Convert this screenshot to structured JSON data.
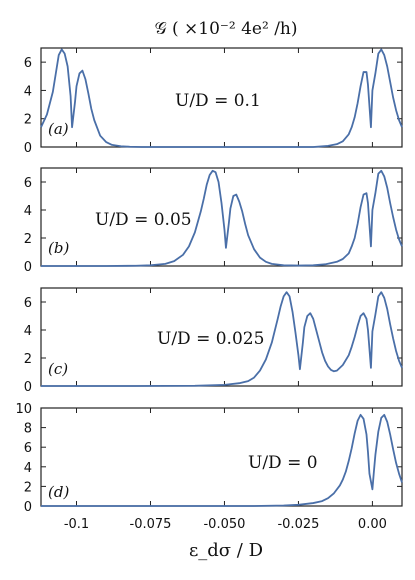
{
  "chart_data": {
    "type": "line",
    "title": "𝒢 ( ×10⁻² 4e² /h)",
    "xlabel": "ε_dσ / D",
    "xlim": [
      -0.112,
      0.01
    ],
    "x_ticks": [
      {
        "value": -0.1,
        "label": "-0.1"
      },
      {
        "value": -0.075,
        "label": "-0.075"
      },
      {
        "value": -0.05,
        "label": "-0.050"
      },
      {
        "value": -0.025,
        "label": "-0.025"
      },
      {
        "value": 0.0,
        "label": "0.00"
      }
    ],
    "panels": [
      {
        "panel_label": "(a)",
        "annotation": "U/D = 0.1",
        "ylim": [
          0,
          7
        ],
        "y_ticks": [
          0,
          2,
          4,
          6
        ],
        "x": [
          -0.112,
          -0.11,
          -0.108,
          -0.107,
          -0.106,
          -0.105,
          -0.104,
          -0.103,
          -0.102,
          -0.1015,
          -0.1005,
          -0.1,
          -0.099,
          -0.098,
          -0.097,
          -0.096,
          -0.095,
          -0.094,
          -0.092,
          -0.09,
          -0.088,
          -0.085,
          -0.082,
          -0.078,
          -0.07,
          -0.05,
          -0.03,
          -0.02,
          -0.015,
          -0.012,
          -0.01,
          -0.008,
          -0.007,
          -0.006,
          -0.005,
          -0.004,
          -0.003,
          -0.002,
          -0.0015,
          -0.0005,
          0.0,
          0.001,
          0.002,
          0.003,
          0.004,
          0.005,
          0.006,
          0.007,
          0.008,
          0.009,
          0.01
        ],
        "y": [
          1.4,
          2.3,
          3.9,
          5.2,
          6.5,
          6.9,
          6.6,
          5.7,
          3.6,
          1.4,
          3.2,
          4.3,
          5.2,
          5.4,
          4.8,
          3.8,
          2.7,
          1.9,
          0.8,
          0.35,
          0.15,
          0.05,
          0.02,
          0.0,
          0.0,
          0.0,
          0.0,
          0.0,
          0.08,
          0.2,
          0.4,
          0.9,
          1.4,
          2.1,
          3.1,
          4.3,
          5.3,
          5.3,
          4.4,
          1.4,
          4.0,
          5.2,
          6.6,
          6.9,
          6.5,
          5.7,
          4.6,
          3.5,
          2.6,
          1.9,
          1.4
        ]
      },
      {
        "panel_label": "(b)",
        "annotation": "U/D = 0.05",
        "ylim": [
          0,
          7
        ],
        "y_ticks": [
          0,
          2,
          4,
          6
        ],
        "x": [
          -0.112,
          -0.1,
          -0.09,
          -0.08,
          -0.075,
          -0.07,
          -0.067,
          -0.064,
          -0.062,
          -0.06,
          -0.058,
          -0.057,
          -0.056,
          -0.055,
          -0.054,
          -0.053,
          -0.052,
          -0.051,
          -0.05,
          -0.0495,
          -0.0485,
          -0.048,
          -0.047,
          -0.046,
          -0.045,
          -0.044,
          -0.043,
          -0.042,
          -0.04,
          -0.038,
          -0.036,
          -0.034,
          -0.03,
          -0.025,
          -0.02,
          -0.016,
          -0.012,
          -0.01,
          -0.008,
          -0.007,
          -0.006,
          -0.005,
          -0.004,
          -0.003,
          -0.002,
          -0.0015,
          -0.0005,
          0.0,
          0.001,
          0.002,
          0.003,
          0.004,
          0.005,
          0.006,
          0.007,
          0.008,
          0.009,
          0.01
        ],
        "y": [
          0.0,
          0.0,
          0.0,
          0.02,
          0.05,
          0.15,
          0.35,
          0.8,
          1.4,
          2.4,
          3.9,
          4.8,
          5.8,
          6.5,
          6.8,
          6.7,
          6.0,
          4.5,
          2.6,
          1.3,
          3.1,
          4.1,
          5.0,
          5.1,
          4.6,
          3.9,
          3.0,
          2.2,
          1.2,
          0.6,
          0.3,
          0.15,
          0.05,
          0.03,
          0.05,
          0.12,
          0.3,
          0.5,
          0.9,
          1.4,
          2.0,
          3.0,
          4.2,
          5.1,
          5.2,
          4.5,
          1.4,
          4.0,
          5.2,
          6.6,
          6.8,
          6.4,
          5.6,
          4.5,
          3.5,
          2.6,
          1.9,
          1.4
        ]
      },
      {
        "panel_label": "(c)",
        "annotation": "U/D = 0.025",
        "ylim": [
          0,
          7
        ],
        "y_ticks": [
          0,
          2,
          4,
          6
        ],
        "x": [
          -0.112,
          -0.08,
          -0.06,
          -0.05,
          -0.045,
          -0.042,
          -0.04,
          -0.038,
          -0.036,
          -0.034,
          -0.032,
          -0.031,
          -0.03,
          -0.029,
          -0.028,
          -0.027,
          -0.026,
          -0.025,
          -0.0245,
          -0.0235,
          -0.023,
          -0.022,
          -0.021,
          -0.02,
          -0.019,
          -0.018,
          -0.017,
          -0.016,
          -0.015,
          -0.014,
          -0.013,
          -0.012,
          -0.01,
          -0.008,
          -0.007,
          -0.006,
          -0.005,
          -0.004,
          -0.003,
          -0.002,
          -0.0015,
          -0.0005,
          0.0,
          0.001,
          0.002,
          0.003,
          0.004,
          0.005,
          0.006,
          0.007,
          0.008,
          0.009,
          0.01
        ],
        "y": [
          0.0,
          0.0,
          0.02,
          0.08,
          0.2,
          0.35,
          0.6,
          1.1,
          1.9,
          3.1,
          4.8,
          5.7,
          6.4,
          6.7,
          6.4,
          5.3,
          3.8,
          2.2,
          1.2,
          3.1,
          4.2,
          5.0,
          5.2,
          4.8,
          4.0,
          3.2,
          2.4,
          1.8,
          1.4,
          1.15,
          1.05,
          1.1,
          1.5,
          2.2,
          2.8,
          3.5,
          4.3,
          5.0,
          5.2,
          4.8,
          4.0,
          1.3,
          3.9,
          5.1,
          6.4,
          6.7,
          6.3,
          5.5,
          4.4,
          3.4,
          2.5,
          1.8,
          1.3
        ]
      },
      {
        "panel_label": "(d)",
        "annotation": "U/D = 0",
        "ylim": [
          0,
          10
        ],
        "y_ticks": [
          0,
          2,
          4,
          6,
          8,
          10
        ],
        "x": [
          -0.112,
          -0.06,
          -0.04,
          -0.03,
          -0.025,
          -0.02,
          -0.017,
          -0.015,
          -0.013,
          -0.011,
          -0.01,
          -0.009,
          -0.008,
          -0.007,
          -0.006,
          -0.005,
          -0.004,
          -0.003,
          -0.002,
          -0.0015,
          -0.001,
          0.0,
          0.0005,
          0.001,
          0.002,
          0.003,
          0.004,
          0.005,
          0.006,
          0.007,
          0.008,
          0.009,
          0.01
        ],
        "y": [
          0.0,
          0.0,
          0.0,
          0.05,
          0.12,
          0.3,
          0.5,
          0.8,
          1.3,
          2.1,
          2.7,
          3.5,
          4.6,
          5.9,
          7.4,
          8.7,
          9.3,
          8.9,
          7.3,
          5.5,
          3.3,
          1.7,
          3.5,
          5.2,
          7.6,
          9.0,
          9.3,
          8.6,
          7.3,
          5.8,
          4.4,
          3.3,
          2.4
        ]
      }
    ]
  }
}
